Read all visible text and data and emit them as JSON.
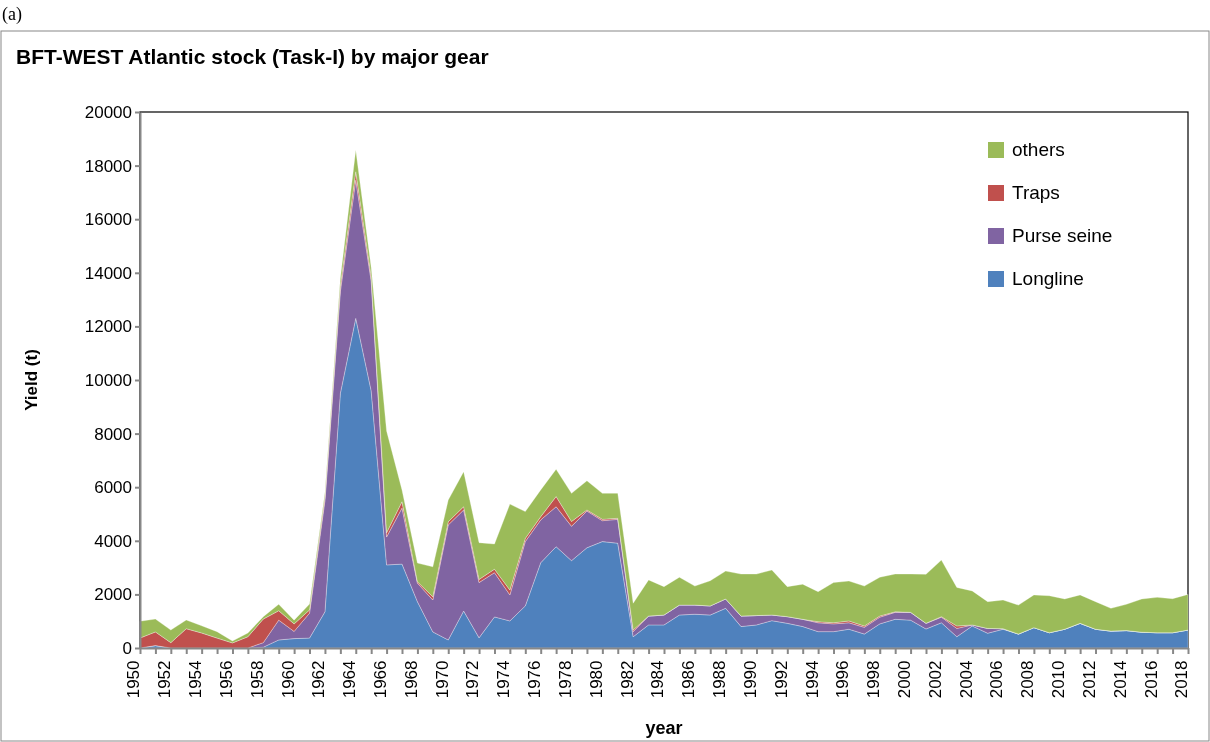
{
  "chart_data": {
    "type": "area",
    "stacked": true,
    "title": "BFT-WEST Atlantic stock  (Task-I)  by major gear",
    "xlabel": "year",
    "ylabel": "Yield (t)",
    "annotations": [
      "(a)"
    ],
    "legend": "top right",
    "x": [
      1950,
      1951,
      1952,
      1953,
      1954,
      1955,
      1956,
      1957,
      1958,
      1959,
      1960,
      1961,
      1962,
      1963,
      1964,
      1965,
      1966,
      1967,
      1968,
      1969,
      1970,
      1971,
      1972,
      1973,
      1974,
      1975,
      1976,
      1977,
      1978,
      1979,
      1980,
      1981,
      1982,
      1983,
      1984,
      1985,
      1986,
      1987,
      1988,
      1989,
      1990,
      1991,
      1992,
      1993,
      1994,
      1995,
      1996,
      1997,
      1998,
      1999,
      2000,
      2001,
      2002,
      2003,
      2004,
      2005,
      2006,
      2007,
      2008,
      2009,
      2010,
      2011,
      2012,
      2013,
      2014,
      2015,
      2016,
      2017,
      2018
    ],
    "xlim": [
      1950,
      2018
    ],
    "xticks": [
      {
        "value": 1950,
        "label": "1950"
      },
      {
        "value": 1951,
        "label": null
      },
      {
        "value": 1952,
        "label": "1952"
      },
      {
        "value": 1953,
        "label": null
      },
      {
        "value": 1954,
        "label": "1954"
      },
      {
        "value": 1955,
        "label": null
      },
      {
        "value": 1956,
        "label": "1956"
      },
      {
        "value": 1957,
        "label": null
      },
      {
        "value": 1958,
        "label": "1958"
      },
      {
        "value": 1959,
        "label": null
      },
      {
        "value": 1960,
        "label": "1960"
      },
      {
        "value": 1961,
        "label": null
      },
      {
        "value": 1962,
        "label": "1962"
      },
      {
        "value": 1963,
        "label": null
      },
      {
        "value": 1964,
        "label": "1964"
      },
      {
        "value": 1965,
        "label": null
      },
      {
        "value": 1966,
        "label": "1966"
      },
      {
        "value": 1967,
        "label": null
      },
      {
        "value": 1968,
        "label": "1968"
      },
      {
        "value": 1969,
        "label": null
      },
      {
        "value": 1970,
        "label": "1970"
      },
      {
        "value": 1971,
        "label": null
      },
      {
        "value": 1972,
        "label": "1972"
      },
      {
        "value": 1973,
        "label": null
      },
      {
        "value": 1974,
        "label": "1974"
      },
      {
        "value": 1975,
        "label": null
      },
      {
        "value": 1976,
        "label": "1976"
      },
      {
        "value": 1977,
        "label": null
      },
      {
        "value": 1978,
        "label": "1978"
      },
      {
        "value": 1979,
        "label": null
      },
      {
        "value": 1980,
        "label": "1980"
      },
      {
        "value": 1981,
        "label": null
      },
      {
        "value": 1982,
        "label": "1982"
      },
      {
        "value": 1983,
        "label": null
      },
      {
        "value": 1984,
        "label": "1984"
      },
      {
        "value": 1985,
        "label": null
      },
      {
        "value": 1986,
        "label": "1986"
      },
      {
        "value": 1987,
        "label": null
      },
      {
        "value": 1988,
        "label": "1988"
      },
      {
        "value": 1989,
        "label": null
      },
      {
        "value": 1990,
        "label": "1990"
      },
      {
        "value": 1991,
        "label": null
      },
      {
        "value": 1992,
        "label": "1992"
      },
      {
        "value": 1993,
        "label": null
      },
      {
        "value": 1994,
        "label": "1994"
      },
      {
        "value": 1995,
        "label": null
      },
      {
        "value": 1996,
        "label": "1996"
      },
      {
        "value": 1997,
        "label": null
      },
      {
        "value": 1998,
        "label": "1998"
      },
      {
        "value": 1999,
        "label": null
      },
      {
        "value": 2000,
        "label": "2000"
      },
      {
        "value": 2001,
        "label": null
      },
      {
        "value": 2002,
        "label": "2002"
      },
      {
        "value": 2003,
        "label": null
      },
      {
        "value": 2004,
        "label": "2004"
      },
      {
        "value": 2005,
        "label": null
      },
      {
        "value": 2006,
        "label": "2006"
      },
      {
        "value": 2007,
        "label": null
      },
      {
        "value": 2008,
        "label": "2008"
      },
      {
        "value": 2009,
        "label": null
      },
      {
        "value": 2010,
        "label": "2010"
      },
      {
        "value": 2011,
        "label": null
      },
      {
        "value": 2012,
        "label": "2012"
      },
      {
        "value": 2013,
        "label": null
      },
      {
        "value": 2014,
        "label": "2014"
      },
      {
        "value": 2015,
        "label": null
      },
      {
        "value": 2016,
        "label": "2016"
      },
      {
        "value": 2017,
        "label": null
      },
      {
        "value": 2018,
        "label": "2018"
      }
    ],
    "ylim": [
      0,
      20000
    ],
    "yticks": [
      0,
      2000,
      4000,
      6000,
      8000,
      10000,
      12000,
      14000,
      16000,
      18000,
      20000
    ],
    "series": [
      {
        "name": "Longline",
        "color": "#4f81bd",
        "values": [
          0,
          90,
          0,
          0,
          0,
          0,
          0,
          0,
          30,
          300,
          350,
          370,
          1350,
          9500,
          12300,
          9600,
          3100,
          3130,
          1730,
          600,
          300,
          1380,
          380,
          1160,
          1010,
          1570,
          3180,
          3780,
          3260,
          3740,
          3970,
          3910,
          420,
          860,
          860,
          1230,
          1260,
          1230,
          1480,
          800,
          860,
          1020,
          920,
          800,
          610,
          610,
          700,
          520,
          900,
          1070,
          1040,
          710,
          940,
          420,
          820,
          550,
          700,
          520,
          760,
          570,
          700,
          920,
          700,
          630,
          650,
          590,
          570,
          570,
          670
        ]
      },
      {
        "name": "Purse seine",
        "color": "#8064a2",
        "values": [
          0,
          0,
          0,
          0,
          0,
          0,
          0,
          0,
          170,
          740,
          270,
          930,
          4150,
          3800,
          5160,
          4100,
          1040,
          2090,
          690,
          1190,
          4290,
          3770,
          2060,
          1650,
          970,
          2400,
          1600,
          1490,
          1280,
          1370,
          780,
          890,
          190,
          330,
          370,
          370,
          340,
          340,
          350,
          390,
          350,
          210,
          250,
          270,
          330,
          290,
          240,
          250,
          250,
          260,
          290,
          210,
          210,
          310,
          40,
          180,
          20,
          0,
          0,
          0,
          0,
          0,
          0,
          0,
          0,
          0,
          0,
          0,
          0
        ]
      },
      {
        "name": "Traps",
        "color": "#c0504d",
        "values": [
          370,
          510,
          200,
          720,
          560,
          370,
          190,
          420,
          880,
          350,
          280,
          120,
          150,
          200,
          310,
          150,
          160,
          240,
          50,
          120,
          120,
          120,
          120,
          130,
          180,
          120,
          120,
          380,
          180,
          40,
          50,
          40,
          60,
          0,
          0,
          0,
          0,
          0,
          0,
          0,
          0,
          0,
          0,
          0,
          40,
          40,
          70,
          50,
          40,
          20,
          0,
          0,
          20,
          90,
          0,
          0,
          0,
          0,
          0,
          0,
          0,
          0,
          0,
          0,
          0,
          0,
          0,
          0,
          0
        ]
      },
      {
        "name": "others",
        "color": "#9bbb59",
        "values": [
          630,
          480,
          470,
          325,
          270,
          240,
          70,
          140,
          90,
          240,
          140,
          220,
          150,
          300,
          810,
          350,
          3800,
          440,
          700,
          1120,
          810,
          1310,
          1370,
          940,
          3210,
          1000,
          1000,
          1020,
          1050,
          1090,
          970,
          930,
          1000,
          1350,
          1060,
          1040,
          710,
          940,
          1040,
          1570,
          1550,
          1680,
          1120,
          1310,
          1120,
          1500,
          1490,
          1490,
          1450,
          1410,
          1430,
          1830,
          2110,
          1440,
          1270,
          1000,
          1070,
          1080,
          1220,
          1380,
          1130,
          1060,
          1030,
          850,
          980,
          1240,
          1320,
          1270,
          1330
        ]
      }
    ]
  }
}
